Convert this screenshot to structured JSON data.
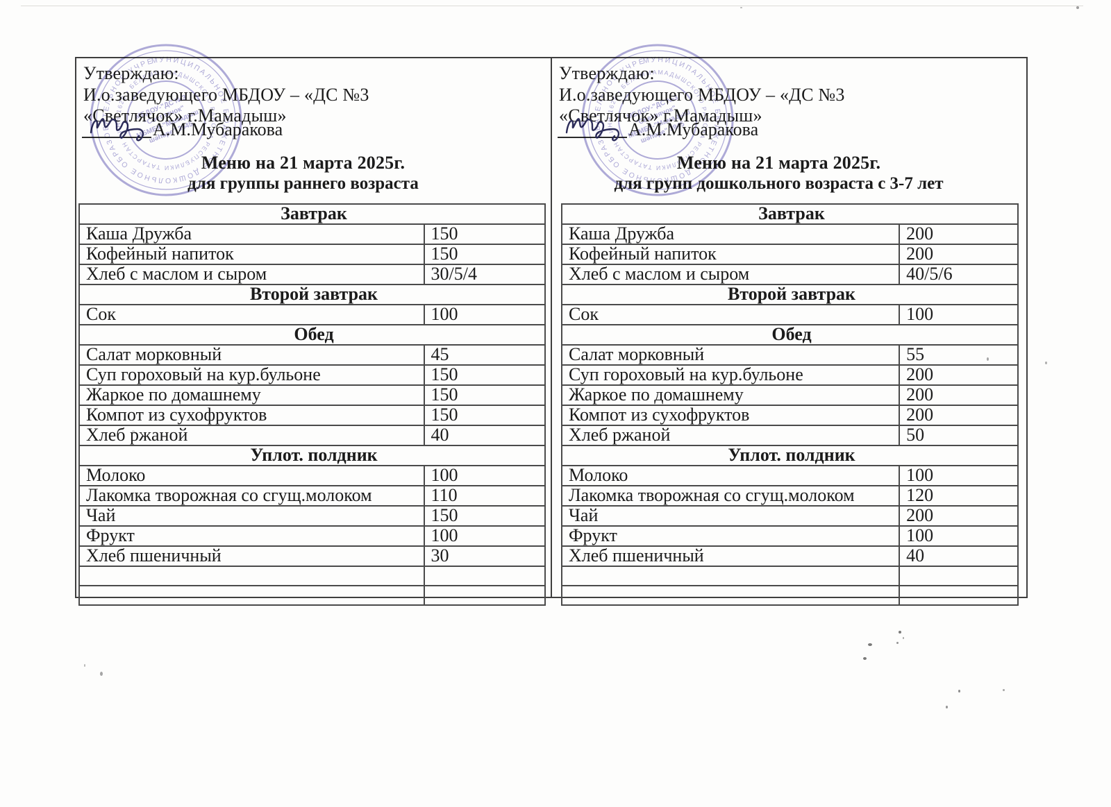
{
  "colors": {
    "stamp_ink": "#7b74c1",
    "signature_ink": "#2d2d5a",
    "text_ink": "#1b1b1b",
    "table_border": "#4a4a4a"
  },
  "stamp": {
    "ring_outer": "МУНИЦИПАЛЬНОЕ БЮДЖЕТНОЕ ДОШКОЛЬНОЕ ОБРАЗОВАТЕЛЬНОЕ УЧРЕЖДЕНИЕ •",
    "ring_inner": "МАМАДЫШСКОГО РАЙОНА РЕСПУБЛИКИ ТАТАРСТАН • ИНН 1626 • БЕЛЕМ •",
    "center_line1": "МБДОУ-\"ДС №3",
    "center_line2": "\"Светлячок\"",
    "center_line3": "МБМБУ-\"Мамадыш",
    "center_line4": "шәһәре\" 3945"
  },
  "panels": [
    {
      "approve": {
        "line1": "Утверждаю:",
        "line2": "И.о.заведующего МБДОУ – «ДС №3",
        "line3": "«Светлячок» г.Мамадыш»",
        "signer": "А.М.Мубаракова"
      },
      "title": "Меню на  21 марта 2025г.",
      "subtitle": "для группы раннего возраста",
      "sections": [
        {
          "header": "Завтрак",
          "items": [
            {
              "name": "Каша Дружба",
              "qty": "150"
            },
            {
              "name": "Кофейный напиток",
              "qty": "150"
            },
            {
              "name": "Хлеб с маслом и сыром",
              "qty": "30/5/4"
            }
          ]
        },
        {
          "header": "Второй завтрак",
          "items": [
            {
              "name": "Сок",
              "qty": "100"
            }
          ]
        },
        {
          "header": "Обед",
          "items": [
            {
              "name": "Салат морковный",
              "qty": "45"
            },
            {
              "name": "Суп гороховый на кур.бульоне",
              "qty": "150"
            },
            {
              "name": "Жаркое по домашнему",
              "qty": "150"
            },
            {
              "name": "Компот из сухофруктов",
              "qty": "150"
            },
            {
              "name": "Хлеб ржаной",
              "qty": "40"
            }
          ]
        },
        {
          "header": "Уплот. полдник",
          "items": [
            {
              "name": "Молоко",
              "qty": "100"
            },
            {
              "name": "Лакомка творожная со сгущ.молоком",
              "qty": "110"
            },
            {
              "name": "Чай",
              "qty": "150"
            },
            {
              "name": "Фрукт",
              "qty": "100"
            },
            {
              "name": "Хлеб пшеничный",
              "qty": "30"
            }
          ]
        }
      ],
      "empty_rows": 2
    },
    {
      "approve": {
        "line1": "Утверждаю:",
        "line2": "И.о.заведующего МБДОУ – «ДС №3",
        "line3": "«Светлячок» г.Мамадыш»",
        "signer": "А.М.Мубаракова"
      },
      "title": "Меню на  21 марта 2025г.",
      "subtitle": "для групп дошкольного возраста с 3-7 лет",
      "sections": [
        {
          "header": "Завтрак",
          "items": [
            {
              "name": "Каша Дружба",
              "qty": "200"
            },
            {
              "name": "Кофейный напиток",
              "qty": "200"
            },
            {
              "name": "Хлеб с маслом и сыром",
              "qty": "40/5/6"
            }
          ]
        },
        {
          "header": "Второй завтрак",
          "items": [
            {
              "name": "Сок",
              "qty": "100"
            }
          ]
        },
        {
          "header": "Обед",
          "items": [
            {
              "name": "Салат морковный",
              "qty": "55"
            },
            {
              "name": "Суп гороховый на кур.бульоне",
              "qty": "200"
            },
            {
              "name": "Жаркое по домашнему",
              "qty": "200"
            },
            {
              "name": "Компот из сухофруктов",
              "qty": "200"
            },
            {
              "name": "Хлеб ржаной",
              "qty": "50"
            }
          ]
        },
        {
          "header": "Уплот. полдник",
          "items": [
            {
              "name": "Молоко",
              "qty": "100"
            },
            {
              "name": "Лакомка творожная со сгущ.молоком",
              "qty": "120"
            },
            {
              "name": "Чай",
              "qty": "200"
            },
            {
              "name": "Фрукт",
              "qty": "100"
            },
            {
              "name": "Хлеб пшеничный",
              "qty": "40"
            }
          ]
        }
      ],
      "empty_rows": 2
    }
  ]
}
